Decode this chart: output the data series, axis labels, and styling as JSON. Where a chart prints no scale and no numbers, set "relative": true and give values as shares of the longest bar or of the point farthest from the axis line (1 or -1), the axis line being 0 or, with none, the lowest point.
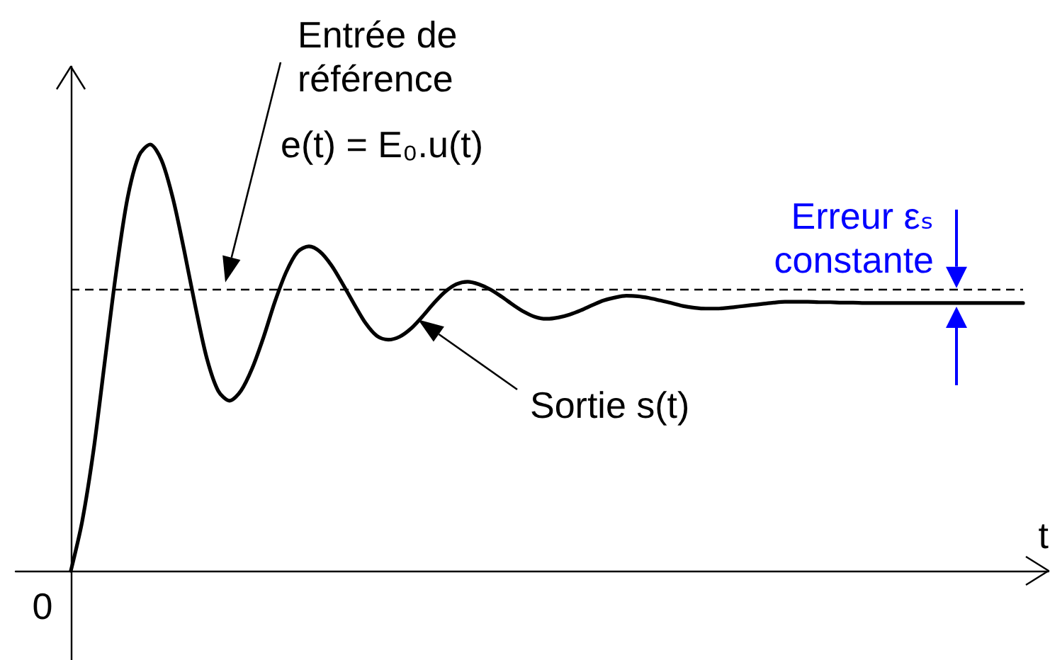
{
  "chart_data": {
    "type": "line",
    "relative": true,
    "xlabel": "t",
    "categories": [
      null,
      null,
      null,
      null,
      null,
      null,
      null,
      null,
      null,
      null,
      null,
      null,
      null,
      null,
      null,
      null,
      null,
      null,
      null,
      null,
      null,
      null,
      null,
      null,
      null,
      null,
      null,
      null,
      null,
      null,
      null,
      null,
      null,
      null,
      null,
      null,
      null,
      null,
      null,
      null,
      null,
      null,
      null,
      null,
      null,
      null,
      null,
      null,
      null,
      null,
      null,
      null,
      null,
      null,
      null,
      null,
      null,
      null,
      null,
      null,
      null,
      null,
      null,
      null,
      null,
      null,
      null,
      null,
      null,
      null,
      null,
      null,
      null,
      null,
      null,
      null,
      null,
      null,
      null,
      null,
      null,
      null,
      null,
      null,
      null
    ],
    "series": [
      {
        "color": "#000000",
        "values": [
          0,
          0.116,
          0.282,
          0.492,
          0.701,
          0.874,
          0.973,
          1,
          0.963,
          0.874,
          0.751,
          0.618,
          0.498,
          0.422,
          0.399,
          0.422,
          0.475,
          0.548,
          0.631,
          0.701,
          0.748,
          0.761,
          0.748,
          0.716,
          0.672,
          0.625,
          0.581,
          0.551,
          0.542,
          0.549,
          0.568,
          0.596,
          0.627,
          0.654,
          0.672,
          0.678,
          0.672,
          0.66,
          0.643,
          0.624,
          0.607,
          0.595,
          0.591,
          0.594,
          0.601,
          0.611,
          0.623,
          0.634,
          0.641,
          0.645,
          0.644,
          0.64,
          0.634,
          0.628,
          0.621,
          0.617,
          0.615,
          0.615,
          0.617,
          0.62,
          0.623,
          0.626,
          0.629,
          0.631,
          0.631,
          0.631,
          0.63,
          0.63,
          0.629,
          0.629,
          0.628,
          0.628,
          0.628,
          0.628,
          0.628,
          0.628,
          0.628,
          0.628,
          0.628,
          0.628,
          0.628,
          0.628,
          0.628,
          0.628,
          0.628
        ]
      }
    ],
    "ref_lines": [
      {
        "axis": "y",
        "value": 0.66,
        "label": "Entrée de référence",
        "line_style": "dashed",
        "color": "#000000"
      }
    ],
    "annotations": [
      "e(t) = E₀.u(t)",
      "Sortie s(t)",
      "Erreur εₛ constante",
      "0"
    ]
  }
}
